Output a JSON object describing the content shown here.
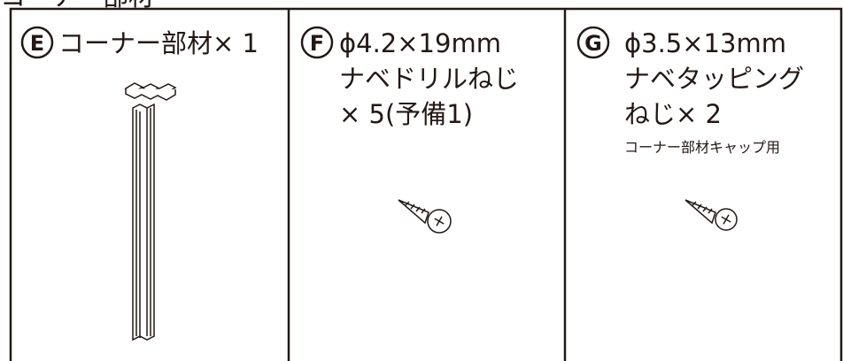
{
  "header": "コーナー部材",
  "parts": [
    {
      "letter": "E",
      "lines": [
        "コーナー部材× 1"
      ]
    },
    {
      "letter": "F",
      "lines": [
        "ϕ4.2×19mm",
        "ナベドリルねじ",
        "× 5(予備1)"
      ]
    },
    {
      "letter": "G",
      "lines": [
        "ϕ3.5×13mm",
        "ナベタッピング",
        "ねじ× 2"
      ],
      "note": "コーナー部材キャップ用"
    }
  ]
}
